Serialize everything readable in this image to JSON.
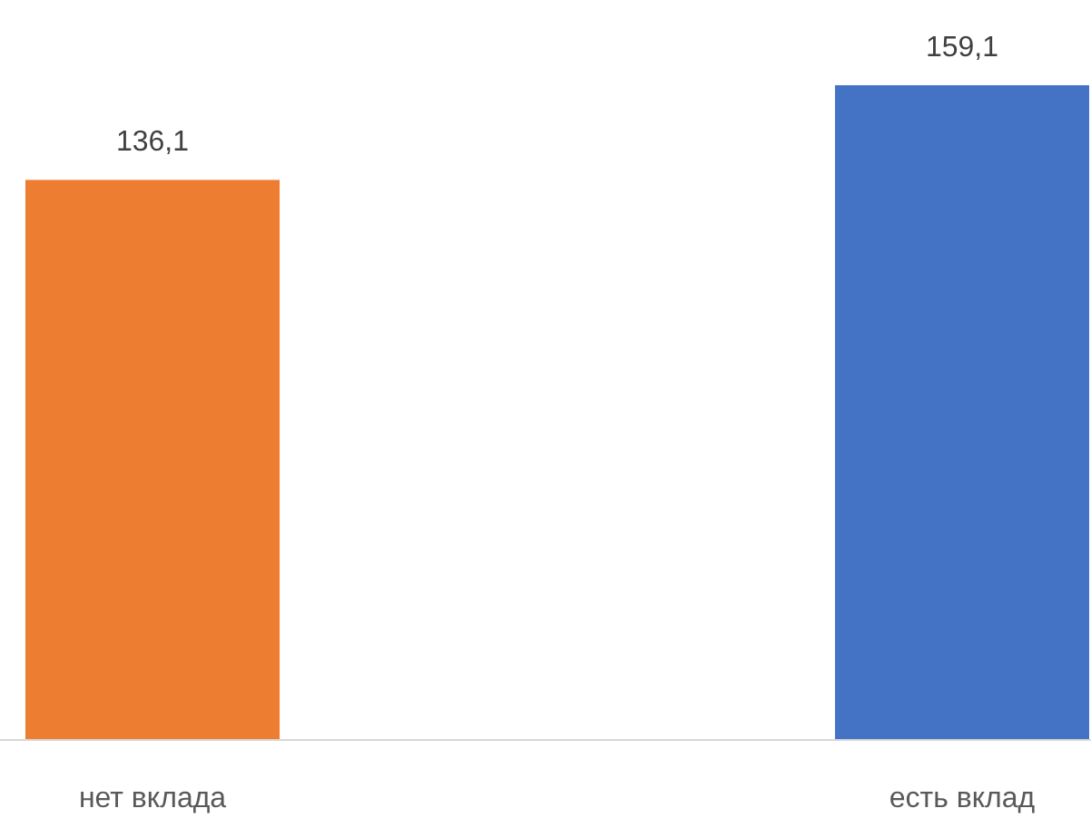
{
  "chart_data": {
    "type": "bar",
    "categories": [
      "нет вклада",
      "есть вклад"
    ],
    "values": [
      136.1,
      159.1
    ],
    "value_labels": [
      "136,1",
      "159,1"
    ],
    "colors": [
      "#ed7d31",
      "#4472c4"
    ],
    "tick_labels": "x"
  }
}
